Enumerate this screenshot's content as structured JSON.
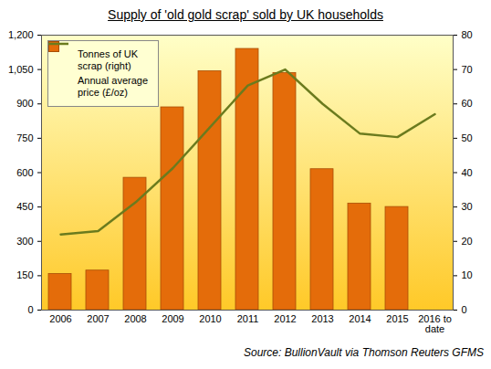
{
  "chart_data": {
    "type": "bar",
    "title": "Supply of 'old gold scrap' sold by UK households",
    "categories": [
      "2006",
      "2007",
      "2008",
      "2009",
      "2010",
      "2011",
      "2012",
      "2013",
      "2014",
      "2015",
      "2016 to date"
    ],
    "series": [
      {
        "name": "Tonnes of UK scrap (right)",
        "type": "bar",
        "axis": "y2",
        "color": "#E46C0A",
        "values": [
          10.5,
          11.5,
          38.5,
          59,
          69.5,
          76,
          69,
          41,
          31,
          30,
          null
        ]
      },
      {
        "name": "Annual average price (£/oz)",
        "type": "line",
        "color": "#6B7B1E",
        "values": [
          330,
          345,
          470,
          620,
          800,
          980,
          1050,
          900,
          770,
          755,
          855
        ]
      }
    ],
    "ylim": [
      0,
      1200
    ],
    "yticks": [
      0,
      150,
      300,
      450,
      600,
      750,
      900,
      1050,
      1200
    ],
    "y2lim": [
      0,
      80
    ],
    "y2ticks": [
      0,
      10,
      20,
      30,
      40,
      50,
      60,
      70,
      80
    ],
    "grid": false,
    "legend": "top-left",
    "source": "Source: BullionVault via Thomson Reuters GFMS"
  }
}
